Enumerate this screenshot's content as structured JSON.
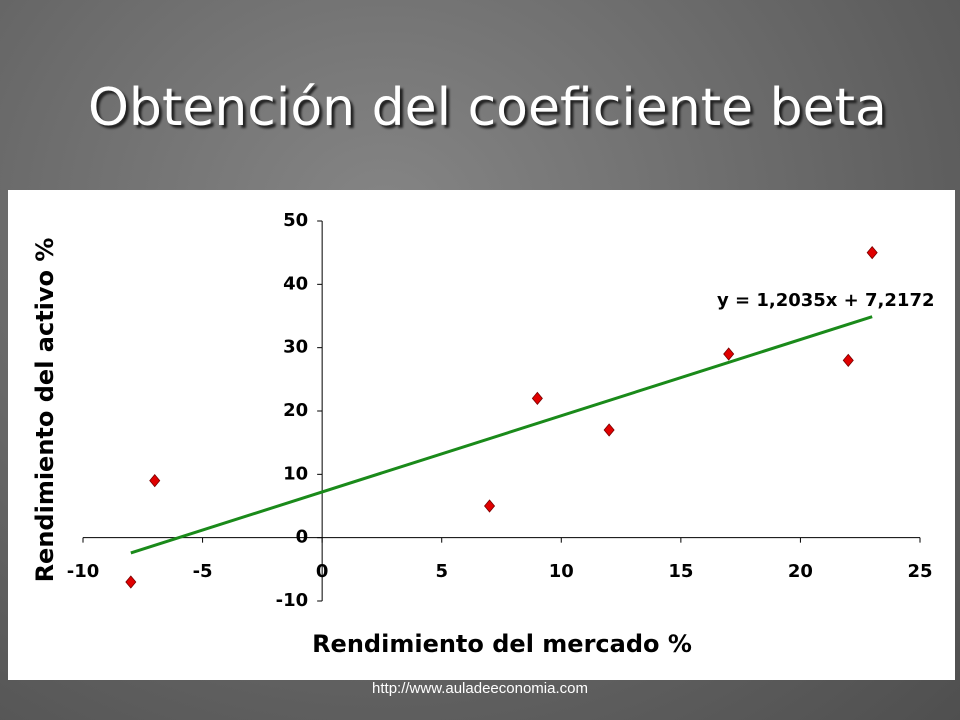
{
  "slide_title": "Obtención del coeficiente beta",
  "footer": "http://www.auladeeconomia.com",
  "chart_data": {
    "type": "scatter",
    "x_label": "Rendimiento del mercado %",
    "y_label": "Rendimiento del activo %",
    "x": [
      -8,
      -7,
      7,
      9,
      12,
      17,
      22,
      23
    ],
    "values": [
      -7,
      9,
      5,
      22,
      17,
      29,
      28,
      45
    ],
    "color": "#e00000",
    "trendline": {
      "label": "y = 1,2035x + 7,2172",
      "color": "#1a8a1a",
      "x": [
        -8,
        23
      ],
      "values": [
        -2.41,
        34.9
      ]
    },
    "xlim": [
      -10,
      25
    ],
    "ylim": [
      -10,
      50
    ],
    "xticks": [
      -10,
      -5,
      0,
      5,
      10,
      15,
      20,
      25
    ],
    "yticks": [
      -10,
      0,
      10,
      20,
      30,
      40,
      50
    ]
  }
}
